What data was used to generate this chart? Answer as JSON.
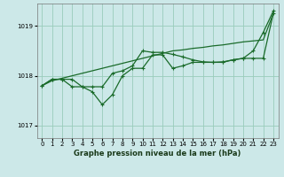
{
  "title": "Graphe pression niveau de la mer (hPa)",
  "bg_color": "#cce8e8",
  "grid_color": "#99ccbb",
  "line_color": "#1a6b2a",
  "ylim": [
    1016.75,
    1019.45
  ],
  "yticks": [
    1017,
    1018,
    1019
  ],
  "xlim": [
    -0.5,
    23.5
  ],
  "xticks": [
    0,
    1,
    2,
    3,
    4,
    5,
    6,
    7,
    8,
    9,
    10,
    11,
    12,
    13,
    14,
    15,
    16,
    17,
    18,
    19,
    20,
    21,
    22,
    23
  ],
  "series1_x": [
    0,
    1,
    2,
    3,
    4,
    5,
    6,
    7,
    8,
    9,
    10,
    11,
    12,
    13,
    14,
    15,
    16,
    17,
    18,
    19,
    20,
    21,
    22,
    23
  ],
  "series1_y": [
    1017.8,
    1017.9,
    1017.95,
    1018.0,
    1018.05,
    1018.1,
    1018.15,
    1018.2,
    1018.25,
    1018.3,
    1018.35,
    1018.4,
    1018.45,
    1018.5,
    1018.52,
    1018.55,
    1018.57,
    1018.6,
    1018.62,
    1018.65,
    1018.68,
    1018.7,
    1018.72,
    1019.25
  ],
  "series2_x": [
    0,
    1,
    2,
    3,
    4,
    5,
    6,
    7,
    8,
    9,
    10,
    11,
    12,
    13,
    14,
    15,
    16,
    17,
    18,
    19,
    20,
    21,
    22,
    23
  ],
  "series2_y": [
    1017.8,
    1017.93,
    1017.93,
    1017.93,
    1017.78,
    1017.78,
    1017.78,
    1018.05,
    1018.1,
    1018.2,
    1018.5,
    1018.47,
    1018.47,
    1018.43,
    1018.38,
    1018.32,
    1018.28,
    1018.27,
    1018.28,
    1018.32,
    1018.35,
    1018.35,
    1018.35,
    1019.25
  ],
  "series3_x": [
    0,
    1,
    2,
    3,
    4,
    5,
    6,
    7,
    8,
    9,
    10,
    11,
    12,
    13,
    14,
    15,
    16,
    17,
    18,
    19,
    20,
    21,
    22,
    23
  ],
  "series3_y": [
    1017.8,
    1017.93,
    1017.93,
    1017.78,
    1017.78,
    1017.68,
    1017.42,
    1017.62,
    1018.0,
    1018.15,
    1018.15,
    1018.42,
    1018.42,
    1018.15,
    1018.2,
    1018.27,
    1018.27,
    1018.27,
    1018.27,
    1018.32,
    1018.35,
    1018.5,
    1018.87,
    1019.3
  ],
  "ylabel_fontsize": 6,
  "tick_fontsize": 5,
  "lw": 0.9,
  "ms": 2.8
}
